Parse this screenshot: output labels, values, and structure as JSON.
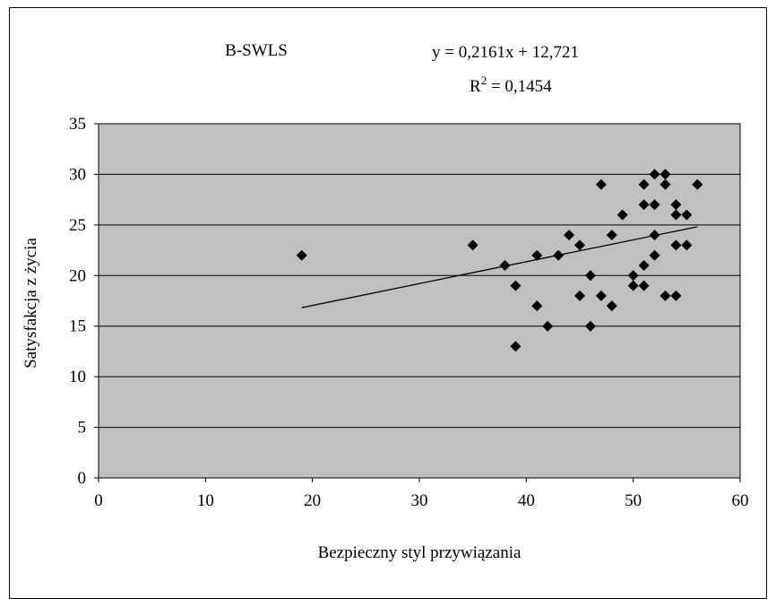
{
  "chart_data": {
    "type": "scatter",
    "title": "B-SWLS",
    "equation_lines": [
      "y = 0,2161x + 12,721",
      "R",
      "2",
      " = 0,1454"
    ],
    "xlabel": "Bezpieczny styl przywiązania",
    "ylabel": "Satysfakcja z życia",
    "xlim": [
      0,
      60
    ],
    "ylim": [
      0,
      35
    ],
    "x_ticks": [
      0,
      10,
      20,
      30,
      40,
      50,
      60
    ],
    "y_ticks": [
      0,
      5,
      10,
      15,
      20,
      25,
      30,
      35
    ],
    "grid": "horizontal",
    "plot_bg_color": "#c0c0c0",
    "marker_color": "#000000",
    "marker_shape": "diamond",
    "trendline": {
      "slope": 0.2161,
      "intercept": 12.721,
      "x_range": [
        19,
        56
      ]
    },
    "points": [
      {
        "x": 19,
        "y": 22
      },
      {
        "x": 35,
        "y": 23
      },
      {
        "x": 38,
        "y": 21
      },
      {
        "x": 39,
        "y": 19
      },
      {
        "x": 39,
        "y": 13
      },
      {
        "x": 41,
        "y": 22
      },
      {
        "x": 41,
        "y": 17
      },
      {
        "x": 42,
        "y": 15
      },
      {
        "x": 43,
        "y": 22
      },
      {
        "x": 44,
        "y": 24
      },
      {
        "x": 45,
        "y": 23
      },
      {
        "x": 45,
        "y": 18
      },
      {
        "x": 46,
        "y": 20
      },
      {
        "x": 46,
        "y": 15
      },
      {
        "x": 47,
        "y": 29
      },
      {
        "x": 47,
        "y": 18
      },
      {
        "x": 48,
        "y": 24
      },
      {
        "x": 48,
        "y": 17
      },
      {
        "x": 49,
        "y": 26
      },
      {
        "x": 50,
        "y": 20
      },
      {
        "x": 50,
        "y": 19
      },
      {
        "x": 51,
        "y": 29
      },
      {
        "x": 51,
        "y": 27
      },
      {
        "x": 51,
        "y": 21
      },
      {
        "x": 51,
        "y": 19
      },
      {
        "x": 52,
        "y": 30
      },
      {
        "x": 52,
        "y": 27
      },
      {
        "x": 52,
        "y": 24
      },
      {
        "x": 52,
        "y": 22
      },
      {
        "x": 53,
        "y": 30
      },
      {
        "x": 53,
        "y": 29
      },
      {
        "x": 53,
        "y": 18
      },
      {
        "x": 54,
        "y": 27
      },
      {
        "x": 54,
        "y": 26
      },
      {
        "x": 54,
        "y": 23
      },
      {
        "x": 54,
        "y": 18
      },
      {
        "x": 55,
        "y": 26
      },
      {
        "x": 55,
        "y": 23
      },
      {
        "x": 56,
        "y": 29
      }
    ]
  }
}
